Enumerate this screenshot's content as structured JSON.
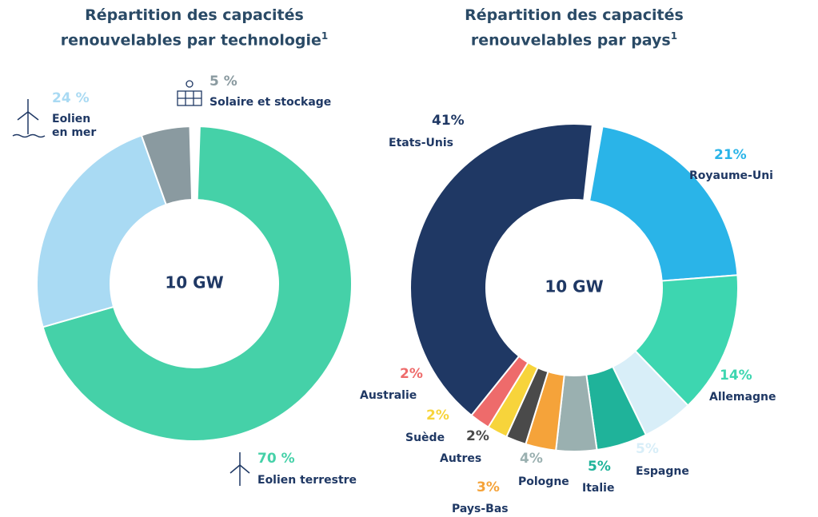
{
  "chart_data": [
    {
      "type": "pie",
      "title": "Répartition des capacités renouvelables par technologie",
      "title_superscript": "1",
      "center_label": "10 GW",
      "categories": [
        "Eolien terrestre",
        "Eolien en mer",
        "Solaire et stockage"
      ],
      "values": [
        70,
        24,
        5
      ],
      "value_labels": [
        "70 %",
        "24 %",
        "5 %"
      ],
      "colors": [
        "#45d1a8",
        "#a9daf3",
        "#8a9aa0"
      ]
    },
    {
      "type": "pie",
      "title": "Répartition des capacités renouvelables par pays",
      "title_superscript": "1",
      "center_label": "10 GW",
      "categories": [
        "Royaume-Uni",
        "Allemagne",
        "Espagne",
        "Italie",
        "Pologne",
        "Pays-Bas",
        "Autres",
        "Suède",
        "Australie",
        "Etats-Unis"
      ],
      "values": [
        21,
        14,
        5,
        5,
        4,
        3,
        2,
        2,
        2,
        41
      ],
      "value_labels": [
        "21%",
        "14%",
        "5%",
        "5%",
        "4%",
        "3%",
        "2%",
        "2%",
        "2%",
        "41%"
      ],
      "colors": [
        "#2ab4e8",
        "#3dd6b0",
        "#d8eef8",
        "#1fb39a",
        "#9ab0b0",
        "#f5a33a",
        "#4a4a4a",
        "#f7d43b",
        "#ee6b6b",
        "#1f3864"
      ]
    }
  ]
}
